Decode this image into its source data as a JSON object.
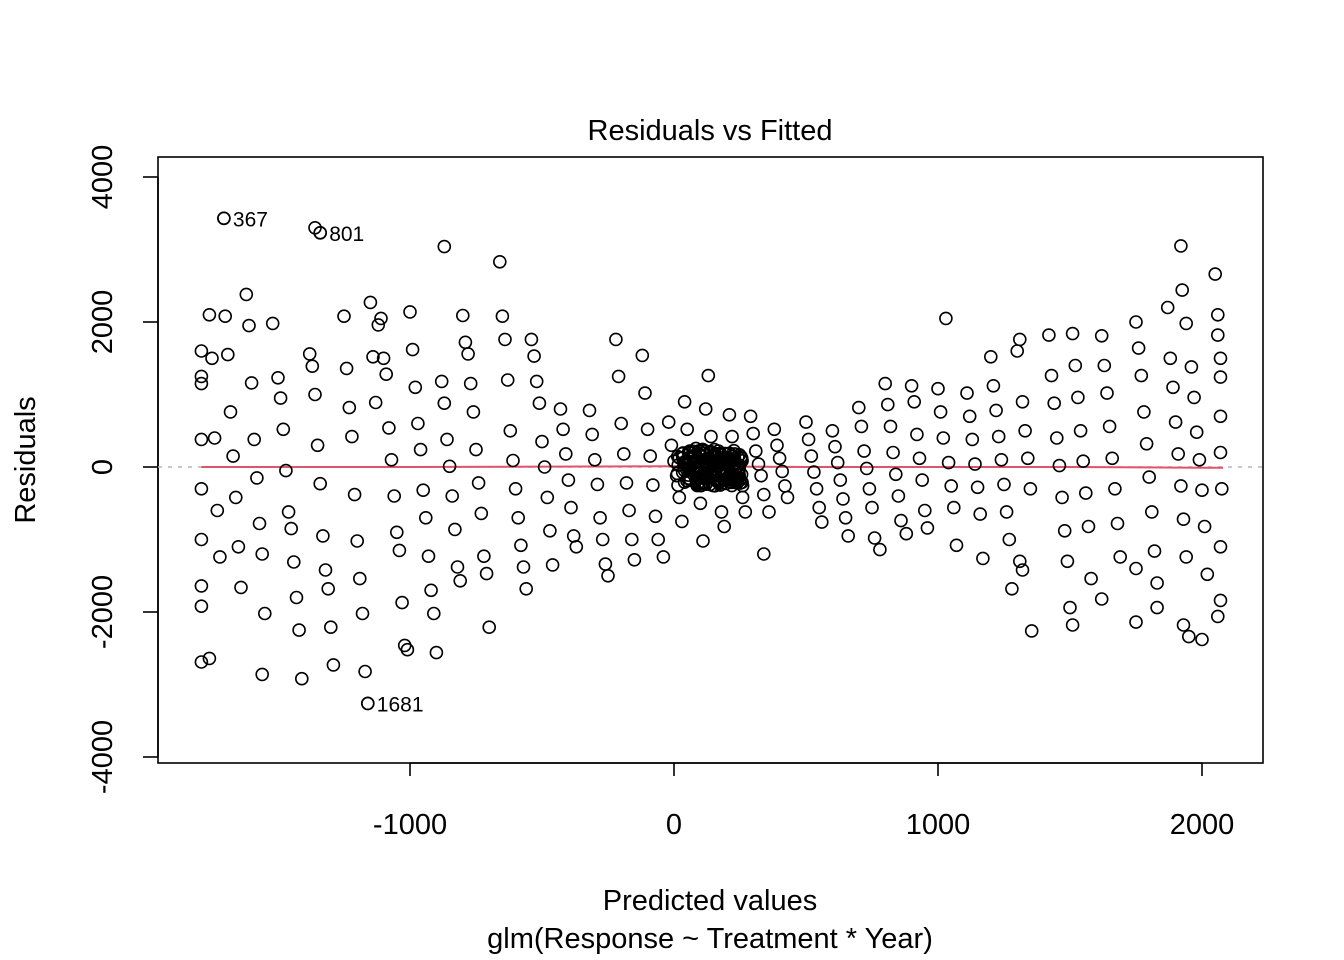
{
  "chart_data": {
    "type": "scatter",
    "title": "Residuals vs Fitted",
    "xlabel": "Predicted values",
    "xlabel_sub": "glm(Response ~ Treatment * Year)",
    "ylabel": "Residuals",
    "xlim": [
      -1900,
      2280
    ],
    "ylim": [
      -4200,
      4300
    ],
    "xticks": [
      -1000,
      0,
      1000,
      2000
    ],
    "xtick_labels": [
      "-1000",
      "0",
      "1000",
      "2000"
    ],
    "yticks": [
      -4000,
      -2000,
      0,
      2000,
      4000
    ],
    "ytick_labels": [
      "-4000",
      "-2000",
      "0",
      "2000",
      "4000"
    ],
    "reference_line": {
      "y": 0,
      "style": "dotted",
      "color": "#b5b5b5"
    },
    "smooth_line": {
      "color": "#df536b",
      "x": [
        -1790,
        -1000,
        0,
        500,
        1000,
        1500,
        2000,
        2080
      ],
      "y": [
        0,
        0,
        10,
        0,
        0,
        0,
        -10,
        -10
      ]
    },
    "labeled_points": [
      {
        "label": "367",
        "x": -1705,
        "y": 3430
      },
      {
        "label": "801",
        "x": -1340,
        "y": 3230
      },
      {
        "label": "1681",
        "x": -1160,
        "y": -3260
      }
    ],
    "points": [
      [
        -1790,
        1600
      ],
      [
        -1790,
        1250
      ],
      [
        -1790,
        1150
      ],
      [
        -1790,
        380
      ],
      [
        -1790,
        -300
      ],
      [
        -1790,
        -1000
      ],
      [
        -1790,
        -1640
      ],
      [
        -1790,
        -1920
      ],
      [
        -1790,
        -2690
      ],
      [
        -1760,
        2100
      ],
      [
        -1750,
        1500
      ],
      [
        -1740,
        400
      ],
      [
        -1730,
        -600
      ],
      [
        -1720,
        -1240
      ],
      [
        -1760,
        -2640
      ],
      [
        -1705,
        3430
      ],
      [
        -1700,
        2080
      ],
      [
        -1690,
        1550
      ],
      [
        -1680,
        760
      ],
      [
        -1670,
        150
      ],
      [
        -1660,
        -420
      ],
      [
        -1650,
        -1100
      ],
      [
        -1640,
        -1660
      ],
      [
        -1620,
        2380
      ],
      [
        -1610,
        1950
      ],
      [
        -1600,
        1160
      ],
      [
        -1590,
        380
      ],
      [
        -1580,
        -150
      ],
      [
        -1570,
        -780
      ],
      [
        -1560,
        -1200
      ],
      [
        -1550,
        -2020
      ],
      [
        -1560,
        -2860
      ],
      [
        -1520,
        1980
      ],
      [
        -1500,
        1230
      ],
      [
        -1490,
        950
      ],
      [
        -1480,
        520
      ],
      [
        -1470,
        -50
      ],
      [
        -1460,
        -620
      ],
      [
        -1450,
        -850
      ],
      [
        -1440,
        -1310
      ],
      [
        -1430,
        -1800
      ],
      [
        -1420,
        -2250
      ],
      [
        -1410,
        -2920
      ],
      [
        -1380,
        1560
      ],
      [
        -1370,
        1390
      ],
      [
        -1360,
        1000
      ],
      [
        -1350,
        300
      ],
      [
        -1340,
        -230
      ],
      [
        -1330,
        -950
      ],
      [
        -1320,
        -1420
      ],
      [
        -1310,
        -1680
      ],
      [
        -1300,
        -2210
      ],
      [
        -1290,
        -2730
      ],
      [
        -1340,
        3230
      ],
      [
        -1360,
        3300
      ],
      [
        -1250,
        2080
      ],
      [
        -1240,
        1360
      ],
      [
        -1230,
        820
      ],
      [
        -1220,
        420
      ],
      [
        -1210,
        -380
      ],
      [
        -1200,
        -1020
      ],
      [
        -1190,
        -1540
      ],
      [
        -1180,
        -2020
      ],
      [
        -1170,
        -2820
      ],
      [
        -1120,
        1960
      ],
      [
        -1110,
        2050
      ],
      [
        -1100,
        1500
      ],
      [
        -1090,
        1280
      ],
      [
        -1080,
        540
      ],
      [
        -1070,
        100
      ],
      [
        -1060,
        -400
      ],
      [
        -1050,
        -900
      ],
      [
        -1040,
        -1150
      ],
      [
        -1030,
        -1870
      ],
      [
        -1020,
        -2460
      ],
      [
        -1010,
        -2520
      ],
      [
        -1160,
        -3260
      ],
      [
        -1150,
        2270
      ],
      [
        -1140,
        1520
      ],
      [
        -1130,
        890
      ],
      [
        -1000,
        2140
      ],
      [
        -990,
        1620
      ],
      [
        -980,
        1100
      ],
      [
        -970,
        600
      ],
      [
        -960,
        240
      ],
      [
        -950,
        -320
      ],
      [
        -940,
        -700
      ],
      [
        -930,
        -1230
      ],
      [
        -920,
        -1700
      ],
      [
        -910,
        -2020
      ],
      [
        -900,
        -2560
      ],
      [
        -880,
        1180
      ],
      [
        -870,
        880
      ],
      [
        -860,
        380
      ],
      [
        -850,
        10
      ],
      [
        -840,
        -400
      ],
      [
        -830,
        -860
      ],
      [
        -820,
        -1380
      ],
      [
        -810,
        -1570
      ],
      [
        -870,
        3040
      ],
      [
        -800,
        2090
      ],
      [
        -790,
        1720
      ],
      [
        -780,
        1560
      ],
      [
        -770,
        1150
      ],
      [
        -760,
        760
      ],
      [
        -750,
        240
      ],
      [
        -740,
        -220
      ],
      [
        -730,
        -640
      ],
      [
        -720,
        -1230
      ],
      [
        -710,
        -1470
      ],
      [
        -700,
        -2210
      ],
      [
        -660,
        2830
      ],
      [
        -650,
        2080
      ],
      [
        -640,
        1760
      ],
      [
        -630,
        1200
      ],
      [
        -620,
        500
      ],
      [
        -610,
        90
      ],
      [
        -600,
        -300
      ],
      [
        -590,
        -700
      ],
      [
        -580,
        -1080
      ],
      [
        -570,
        -1380
      ],
      [
        -560,
        -1680
      ],
      [
        -540,
        1760
      ],
      [
        -530,
        1530
      ],
      [
        -520,
        1180
      ],
      [
        -510,
        880
      ],
      [
        -500,
        350
      ],
      [
        -490,
        0
      ],
      [
        -480,
        -420
      ],
      [
        -470,
        -880
      ],
      [
        -460,
        -1350
      ],
      [
        -430,
        800
      ],
      [
        -420,
        520
      ],
      [
        -410,
        180
      ],
      [
        -400,
        -180
      ],
      [
        -390,
        -560
      ],
      [
        -380,
        -950
      ],
      [
        -370,
        -1100
      ],
      [
        -320,
        780
      ],
      [
        -310,
        450
      ],
      [
        -300,
        100
      ],
      [
        -290,
        -240
      ],
      [
        -280,
        -700
      ],
      [
        -270,
        -1000
      ],
      [
        -260,
        -1340
      ],
      [
        -250,
        -1500
      ],
      [
        -220,
        1760
      ],
      [
        -210,
        1250
      ],
      [
        -200,
        600
      ],
      [
        -190,
        180
      ],
      [
        -180,
        -220
      ],
      [
        -170,
        -600
      ],
      [
        -160,
        -1000
      ],
      [
        -150,
        -1280
      ],
      [
        -120,
        1540
      ],
      [
        -110,
        1020
      ],
      [
        -100,
        520
      ],
      [
        -90,
        150
      ],
      [
        -80,
        -250
      ],
      [
        -70,
        -680
      ],
      [
        -60,
        -1000
      ],
      [
        -40,
        -1240
      ],
      [
        -20,
        620
      ],
      [
        -10,
        300
      ],
      [
        0,
        80
      ],
      [
        10,
        -120
      ],
      [
        20,
        -420
      ],
      [
        30,
        -750
      ],
      [
        40,
        900
      ],
      [
        50,
        520
      ],
      [
        60,
        220
      ],
      [
        70,
        40
      ],
      [
        80,
        -60
      ],
      [
        90,
        -240
      ],
      [
        100,
        -500
      ],
      [
        110,
        -1020
      ],
      [
        120,
        800
      ],
      [
        130,
        1260
      ],
      [
        140,
        420
      ],
      [
        150,
        160
      ],
      [
        160,
        -40
      ],
      [
        170,
        -220
      ],
      [
        180,
        -620
      ],
      [
        190,
        -820
      ],
      [
        210,
        720
      ],
      [
        220,
        420
      ],
      [
        230,
        180
      ],
      [
        240,
        0
      ],
      [
        250,
        -180
      ],
      [
        260,
        -420
      ],
      [
        270,
        -620
      ],
      [
        290,
        700
      ],
      [
        300,
        460
      ],
      [
        310,
        220
      ],
      [
        320,
        40
      ],
      [
        330,
        -120
      ],
      [
        340,
        -380
      ],
      [
        340,
        -1200
      ],
      [
        360,
        -620
      ],
      [
        380,
        520
      ],
      [
        390,
        300
      ],
      [
        400,
        120
      ],
      [
        410,
        -60
      ],
      [
        420,
        -260
      ],
      [
        430,
        -420
      ],
      [
        500,
        620
      ],
      [
        510,
        380
      ],
      [
        520,
        150
      ],
      [
        530,
        -70
      ],
      [
        540,
        -300
      ],
      [
        550,
        -560
      ],
      [
        560,
        -760
      ],
      [
        600,
        500
      ],
      [
        610,
        280
      ],
      [
        620,
        60
      ],
      [
        630,
        -180
      ],
      [
        640,
        -440
      ],
      [
        650,
        -700
      ],
      [
        660,
        -950
      ],
      [
        700,
        820
      ],
      [
        710,
        560
      ],
      [
        720,
        220
      ],
      [
        730,
        -20
      ],
      [
        740,
        -300
      ],
      [
        750,
        -560
      ],
      [
        760,
        -980
      ],
      [
        780,
        -1140
      ],
      [
        800,
        1150
      ],
      [
        810,
        860
      ],
      [
        820,
        560
      ],
      [
        830,
        200
      ],
      [
        840,
        -100
      ],
      [
        850,
        -400
      ],
      [
        860,
        -740
      ],
      [
        880,
        -920
      ],
      [
        900,
        1120
      ],
      [
        910,
        900
      ],
      [
        920,
        450
      ],
      [
        930,
        120
      ],
      [
        940,
        -180
      ],
      [
        950,
        -600
      ],
      [
        960,
        -840
      ],
      [
        1030,
        2050
      ],
      [
        1000,
        1080
      ],
      [
        1010,
        760
      ],
      [
        1020,
        400
      ],
      [
        1040,
        60
      ],
      [
        1050,
        -260
      ],
      [
        1060,
        -560
      ],
      [
        1070,
        -1080
      ],
      [
        1110,
        1020
      ],
      [
        1120,
        700
      ],
      [
        1130,
        380
      ],
      [
        1140,
        40
      ],
      [
        1150,
        -280
      ],
      [
        1160,
        -650
      ],
      [
        1170,
        -1260
      ],
      [
        1200,
        1520
      ],
      [
        1210,
        1120
      ],
      [
        1220,
        780
      ],
      [
        1230,
        420
      ],
      [
        1240,
        100
      ],
      [
        1250,
        -240
      ],
      [
        1260,
        -620
      ],
      [
        1270,
        -1000
      ],
      [
        1280,
        -1680
      ],
      [
        1300,
        1600
      ],
      [
        1310,
        1760
      ],
      [
        1320,
        900
      ],
      [
        1330,
        500
      ],
      [
        1340,
        120
      ],
      [
        1350,
        -300
      ],
      [
        1310,
        -1300
      ],
      [
        1320,
        -1420
      ],
      [
        1355,
        -2260
      ],
      [
        1420,
        1820
      ],
      [
        1430,
        1260
      ],
      [
        1440,
        880
      ],
      [
        1450,
        400
      ],
      [
        1460,
        20
      ],
      [
        1470,
        -420
      ],
      [
        1480,
        -880
      ],
      [
        1490,
        -1300
      ],
      [
        1510,
        1840
      ],
      [
        1520,
        1400
      ],
      [
        1530,
        960
      ],
      [
        1540,
        500
      ],
      [
        1550,
        80
      ],
      [
        1560,
        -360
      ],
      [
        1570,
        -820
      ],
      [
        1580,
        -1540
      ],
      [
        1500,
        -1940
      ],
      [
        1510,
        -2180
      ],
      [
        1620,
        1810
      ],
      [
        1630,
        1400
      ],
      [
        1640,
        1020
      ],
      [
        1650,
        560
      ],
      [
        1660,
        120
      ],
      [
        1670,
        -300
      ],
      [
        1680,
        -780
      ],
      [
        1690,
        -1240
      ],
      [
        1620,
        -1820
      ],
      [
        1750,
        2000
      ],
      [
        1760,
        1640
      ],
      [
        1770,
        1260
      ],
      [
        1780,
        760
      ],
      [
        1790,
        320
      ],
      [
        1800,
        -140
      ],
      [
        1810,
        -620
      ],
      [
        1820,
        -1160
      ],
      [
        1750,
        -1400
      ],
      [
        1750,
        -2140
      ],
      [
        1870,
        2200
      ],
      [
        1880,
        1500
      ],
      [
        1890,
        1100
      ],
      [
        1900,
        620
      ],
      [
        1910,
        180
      ],
      [
        1920,
        -260
      ],
      [
        1930,
        -720
      ],
      [
        1940,
        -1240
      ],
      [
        1830,
        -1600
      ],
      [
        1830,
        -1940
      ],
      [
        1920,
        3050
      ],
      [
        1925,
        2440
      ],
      [
        1940,
        1980
      ],
      [
        1960,
        1380
      ],
      [
        1970,
        960
      ],
      [
        1980,
        480
      ],
      [
        1990,
        100
      ],
      [
        2000,
        -320
      ],
      [
        2010,
        -820
      ],
      [
        2020,
        -1480
      ],
      [
        1930,
        -2180
      ],
      [
        1950,
        -2340
      ],
      [
        2000,
        -2380
      ],
      [
        2050,
        2660
      ],
      [
        2060,
        2100
      ],
      [
        2060,
        1820
      ],
      [
        2070,
        1500
      ],
      [
        2070,
        1240
      ],
      [
        2070,
        700
      ],
      [
        2070,
        200
      ],
      [
        2075,
        -300
      ],
      [
        2070,
        -1100
      ],
      [
        2070,
        -1840
      ],
      [
        2060,
        -2060
      ]
    ]
  }
}
